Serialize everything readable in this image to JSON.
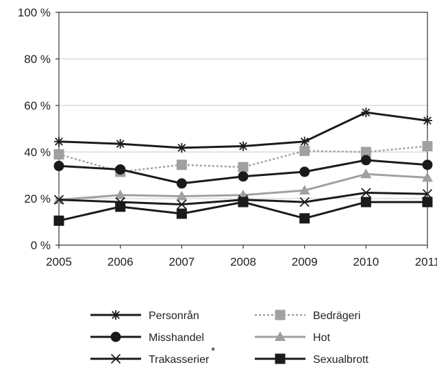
{
  "chart_data": {
    "type": "line",
    "x": [
      "2005",
      "2006",
      "2007",
      "2008",
      "2009",
      "2010",
      "2011"
    ],
    "y_ticks": [
      "0 %",
      "20 %",
      "40 %",
      "60 %",
      "80 %",
      "100 %"
    ],
    "ylim": [
      0,
      100
    ],
    "grid": true,
    "legend_position": "bottom",
    "series": [
      {
        "name": "Personrån",
        "marker": "asterisk",
        "color": "#1a1a1a",
        "dashed": false,
        "values": [
          44.5,
          43.5,
          41.8,
          42.5,
          44.5,
          57,
          53.5
        ]
      },
      {
        "name": "Bedrägeri",
        "marker": "square",
        "color": "#a0a0a0",
        "dashed": true,
        "values": [
          39,
          31.5,
          34.5,
          33.5,
          40.5,
          40,
          42.5
        ]
      },
      {
        "name": "Misshandel",
        "marker": "circle",
        "color": "#1a1a1a",
        "dashed": false,
        "values": [
          34,
          32.5,
          26.5,
          29.5,
          31.5,
          36.5,
          34.5
        ]
      },
      {
        "name": "Hot",
        "marker": "triangle",
        "color": "#a0a0a0",
        "dashed": false,
        "values": [
          19.5,
          21.5,
          21,
          21.5,
          23.5,
          30.5,
          29
        ]
      },
      {
        "name": "Trakasserier",
        "marker": "x",
        "color": "#1a1a1a",
        "dashed": false,
        "values": [
          19.5,
          18.5,
          17.5,
          19.5,
          18.5,
          22.5,
          22
        ]
      },
      {
        "name": "Sexualbrott",
        "marker": "filled-square",
        "color": "#1a1a1a",
        "dashed": false,
        "values": [
          10.5,
          16.5,
          13.5,
          18.5,
          11.5,
          18.5,
          18.5
        ]
      }
    ],
    "legend": [
      {
        "series": 0,
        "label": "Personrån"
      },
      {
        "series": 1,
        "label": "Bedrägeri"
      },
      {
        "series": 2,
        "label": "Misshandel"
      },
      {
        "series": 3,
        "label": "Hot"
      },
      {
        "series": 4,
        "label": "Trakasserier",
        "footnote": "*"
      },
      {
        "series": 5,
        "label": "Sexualbrott"
      }
    ]
  }
}
